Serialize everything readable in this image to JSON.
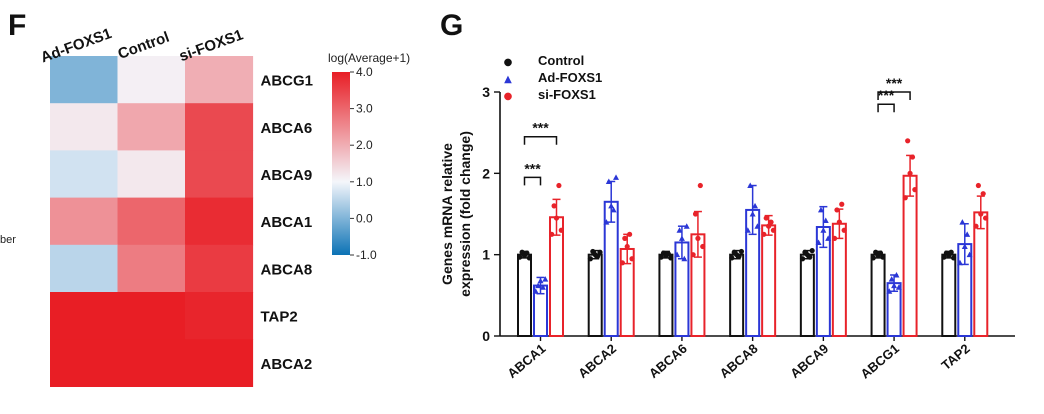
{
  "panel_f_label": "F",
  "panel_g_label": "G",
  "cropped_text": "ber",
  "chart_data": [
    {
      "type": "heatmap",
      "panel": "F",
      "columns": [
        "Ad-FOXS1",
        "Control",
        "si-FOXS1"
      ],
      "rows": [
        "ABCG1",
        "ABCA6",
        "ABCA9",
        "ABCA1",
        "ABCA8",
        "TAP2",
        "ABCA2"
      ],
      "values": [
        [
          0.0,
          1.1,
          2.0
        ],
        [
          1.2,
          2.1,
          3.4
        ],
        [
          0.7,
          1.2,
          3.4
        ],
        [
          2.4,
          3.0,
          3.8
        ],
        [
          0.5,
          2.7,
          3.6
        ],
        [
          4.0,
          4.0,
          3.9
        ],
        [
          4.0,
          4.0,
          4.0
        ]
      ],
      "colorbar": {
        "title": "log(Average+1)",
        "ticks": [
          "4.0",
          "3.0",
          "2.0",
          "1.0",
          "0.0",
          "-1.0"
        ],
        "tick_values": [
          4,
          3,
          2,
          1,
          0,
          -1
        ],
        "range": [
          -1,
          4
        ],
        "low_color": "#0b72b5",
        "mid_color": "#f4f6fb",
        "high_color": "#e81e25"
      }
    },
    {
      "type": "bar",
      "panel": "G",
      "categories": [
        "ABCA1",
        "ABCA2",
        "ABCA6",
        "ABCA8",
        "ABCA9",
        "ABCG1",
        "TAP2"
      ],
      "ylabel_line1": "Genes mRNA relative",
      "ylabel_line2": "expression (fold change)",
      "ylim": [
        0,
        3
      ],
      "yticks": [
        "0",
        "1",
        "2",
        "3"
      ],
      "series": [
        {
          "name": "Control",
          "color": "#111111",
          "legend_marker": "●",
          "values": [
            1.0,
            1.0,
            1.0,
            1.0,
            1.0,
            1.0,
            1.0
          ],
          "errors": [
            0.04,
            0.05,
            0.04,
            0.05,
            0.05,
            0.04,
            0.04
          ],
          "points": [
            [
              0.97,
              1.03,
              0.99,
              1.02,
              0.96
            ],
            [
              0.95,
              1.04,
              1.0,
              0.98,
              1.03
            ],
            [
              0.97,
              1.02,
              0.99,
              1.01,
              0.96
            ],
            [
              0.96,
              1.03,
              1.0,
              0.98,
              1.04
            ],
            [
              0.95,
              1.03,
              1.0,
              0.97,
              1.05
            ],
            [
              0.96,
              1.03,
              0.99,
              1.02,
              0.97
            ],
            [
              0.97,
              1.02,
              0.99,
              1.03,
              0.96
            ]
          ]
        },
        {
          "name": "Ad-FOXS1",
          "color": "#2b37d6",
          "legend_marker": "▲",
          "values": [
            0.62,
            1.65,
            1.15,
            1.55,
            1.34,
            0.65,
            1.13
          ],
          "errors": [
            0.1,
            0.25,
            0.2,
            0.3,
            0.25,
            0.1,
            0.25
          ],
          "points": [
            [
              0.55,
              0.62,
              0.68,
              0.6,
              0.7
            ],
            [
              1.4,
              1.9,
              1.6,
              1.55,
              1.95
            ],
            [
              1.0,
              1.3,
              1.2,
              0.95,
              1.35
            ],
            [
              1.3,
              1.85,
              1.5,
              1.6,
              1.35
            ],
            [
              1.15,
              1.55,
              1.3,
              1.42,
              1.2
            ],
            [
              0.55,
              0.7,
              0.62,
              0.75,
              0.6
            ],
            [
              0.9,
              1.4,
              1.1,
              1.25,
              1.0
            ]
          ]
        },
        {
          "name": "si-FOXS1",
          "color": "#e8232a",
          "legend_marker": "●",
          "values": [
            1.46,
            1.07,
            1.25,
            1.36,
            1.38,
            1.97,
            1.52
          ],
          "errors": [
            0.22,
            0.18,
            0.28,
            0.12,
            0.18,
            0.25,
            0.2
          ],
          "points": [
            [
              1.25,
              1.6,
              1.45,
              1.85,
              1.3
            ],
            [
              0.9,
              1.2,
              1.1,
              1.25,
              0.95
            ],
            [
              1.0,
              1.5,
              1.2,
              1.85,
              1.1
            ],
            [
              1.25,
              1.45,
              1.35,
              1.4,
              1.3
            ],
            [
              1.2,
              1.55,
              1.4,
              1.62,
              1.3
            ],
            [
              1.7,
              2.4,
              2.0,
              2.2,
              1.8
            ],
            [
              1.35,
              1.85,
              1.5,
              1.75,
              1.45
            ]
          ]
        }
      ],
      "significance": [
        {
          "category": "ABCA1",
          "from": "Control",
          "to": "Ad-FOXS1",
          "label": "***",
          "y": 1.95
        },
        {
          "category": "ABCA1",
          "from": "Control",
          "to": "si-FOXS1",
          "label": "***",
          "y": 2.45
        },
        {
          "category": "ABCG1",
          "from": "Control",
          "to": "Ad-FOXS1",
          "label": "***",
          "y": 2.85
        },
        {
          "category": "ABCG1",
          "from": "Control",
          "to": "si-FOXS1",
          "label": "***",
          "y": 3.0
        }
      ]
    }
  ]
}
